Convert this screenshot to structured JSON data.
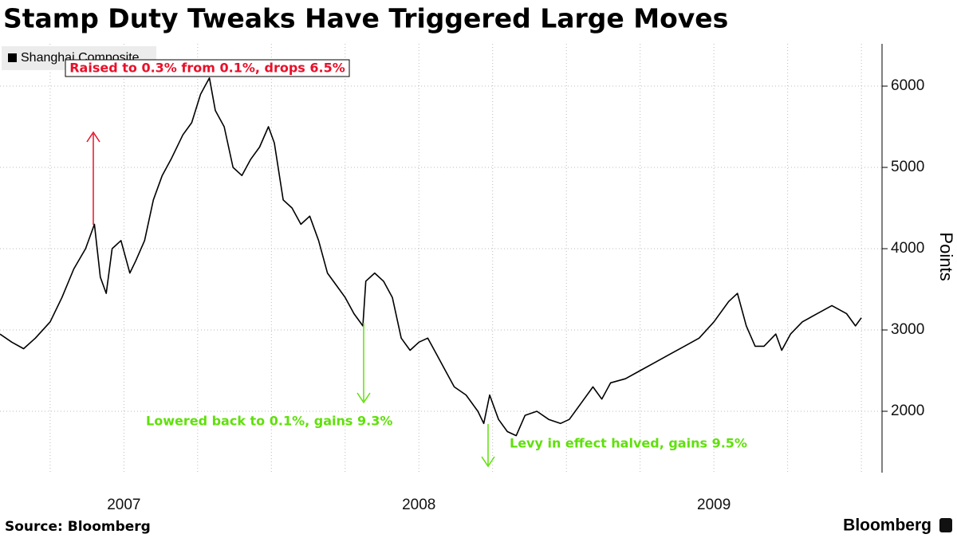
{
  "chart_data": {
    "type": "line",
    "title": "Stamp Duty Tweaks Have Triggered Large Moves",
    "y_label": "Points",
    "source": "Source: Bloomberg",
    "brand": "Bloomberg",
    "legend": "top-left",
    "grid": true,
    "xlim": [
      2007.08,
      2010.07
    ],
    "xticks": [
      {
        "value": 2007.5,
        "label": "2007"
      },
      {
        "value": 2008.5,
        "label": "2008"
      },
      {
        "value": 2009.5,
        "label": "2009"
      }
    ],
    "xgrid": [
      2007.25,
      2007.5,
      2007.75,
      2008.0,
      2008.25,
      2008.5,
      2008.75,
      2009.0,
      2009.25,
      2009.5,
      2009.75,
      2010.0
    ],
    "ylim": [
      1245,
      6520
    ],
    "yticks": [
      2000,
      3000,
      4000,
      5000,
      6000
    ],
    "annotations": [
      {
        "text": "Raised to 0.3% from 0.1%, drops 6.5%",
        "color": "#e8102a"
      },
      {
        "text": "Lowered back to 0.1%, gains 9.3%",
        "color": "#5fe00a"
      },
      {
        "text": "Levy in effect halved, gains 9.5%",
        "color": "#5fe00a"
      }
    ],
    "x": [
      2007.08,
      2007.12,
      2007.16,
      2007.2,
      2007.25,
      2007.29,
      2007.33,
      2007.37,
      2007.4,
      2007.42,
      2007.44,
      2007.46,
      2007.49,
      2007.52,
      2007.54,
      2007.57,
      2007.6,
      2007.63,
      2007.66,
      2007.7,
      2007.73,
      2007.76,
      2007.79,
      2007.81,
      2007.84,
      2007.87,
      2007.9,
      2007.93,
      2007.96,
      2007.99,
      2008.01,
      2008.04,
      2008.07,
      2008.1,
      2008.13,
      2008.16,
      2008.19,
      2008.22,
      2008.25,
      2008.28,
      2008.31,
      2008.32,
      2008.35,
      2008.38,
      2008.41,
      2008.44,
      2008.47,
      2008.5,
      2008.53,
      2008.56,
      2008.59,
      2008.62,
      2008.66,
      2008.7,
      2008.72,
      2008.74,
      2008.77,
      2008.8,
      2008.83,
      2008.86,
      2008.9,
      2008.94,
      2008.98,
      2009.01,
      2009.05,
      2009.09,
      2009.12,
      2009.15,
      2009.2,
      2009.25,
      2009.3,
      2009.35,
      2009.4,
      2009.45,
      2009.5,
      2009.55,
      2009.58,
      2009.61,
      2009.64,
      2009.67,
      2009.71,
      2009.73,
      2009.76,
      2009.8,
      2009.85,
      2009.9,
      2009.95,
      2009.98,
      2010.0
    ],
    "series": [
      {
        "name": "Shanghai Composite",
        "color": "#000000",
        "values": [
          2950,
          2850,
          2770,
          2900,
          3100,
          3400,
          3750,
          4000,
          4300,
          3650,
          3450,
          4000,
          4100,
          3700,
          3850,
          4100,
          4600,
          4900,
          5100,
          5400,
          5550,
          5900,
          6100,
          5700,
          5500,
          5000,
          4900,
          5100,
          5250,
          5500,
          5300,
          4600,
          4500,
          4300,
          4400,
          4100,
          3700,
          3550,
          3400,
          3200,
          3050,
          3600,
          3700,
          3600,
          3400,
          2900,
          2750,
          2850,
          2900,
          2700,
          2500,
          2300,
          2200,
          2000,
          1850,
          2200,
          1900,
          1750,
          1700,
          1950,
          2000,
          1900,
          1850,
          1900,
          2100,
          2300,
          2150,
          2350,
          2400,
          2500,
          2600,
          2700,
          2800,
          2900,
          3100,
          3350,
          3450,
          3050,
          2800,
          2800,
          2950,
          2750,
          2950,
          3100,
          3200,
          3300,
          3200,
          3050,
          3150
        ]
      }
    ]
  }
}
